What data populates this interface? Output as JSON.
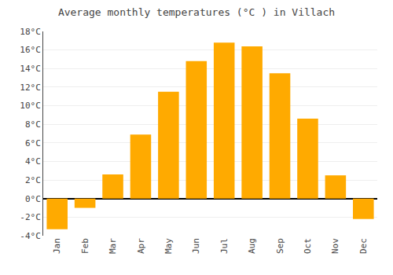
{
  "chart_data": {
    "type": "bar",
    "title": "Average monthly temperatures (°C ) in Villach",
    "categories": [
      "Jan",
      "Feb",
      "Mar",
      "Apr",
      "May",
      "Jun",
      "Jul",
      "Aug",
      "Sep",
      "Oct",
      "Nov",
      "Dec"
    ],
    "values": [
      -3.3,
      -1.0,
      2.6,
      6.9,
      11.5,
      14.8,
      16.8,
      16.4,
      13.5,
      8.6,
      2.5,
      -2.2
    ],
    "color": "#FFAA00",
    "ylim": [
      -4,
      18
    ],
    "yticks": [
      {
        "value": -4,
        "label": "-4°C"
      },
      {
        "value": -2,
        "label": "-2°C"
      },
      {
        "value": 0,
        "label": "0°C"
      },
      {
        "value": 2,
        "label": "2°C"
      },
      {
        "value": 4,
        "label": "4°C"
      },
      {
        "value": 6,
        "label": "6°C"
      },
      {
        "value": 8,
        "label": "8°C"
      },
      {
        "value": 10,
        "label": "10°C"
      },
      {
        "value": 12,
        "label": "12°C"
      },
      {
        "value": 14,
        "label": "14°C"
      },
      {
        "value": 16,
        "label": "16°C"
      },
      {
        "value": 18,
        "label": "18°C"
      }
    ],
    "grid": true
  }
}
